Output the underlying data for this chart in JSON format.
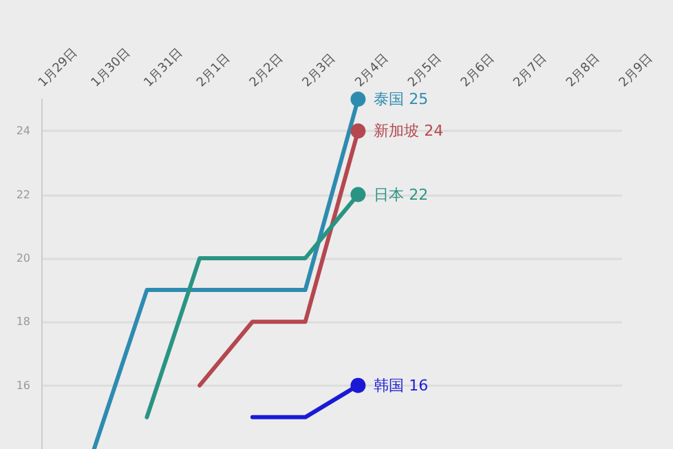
{
  "chart_data": {
    "type": "line",
    "categories": [
      "1月29日",
      "1月30日",
      "1月31日",
      "2月1日",
      "2月2日",
      "2月3日",
      "2月4日",
      "2月5日",
      "2月6日",
      "2月7日",
      "2月8日",
      "2月9日"
    ],
    "series": [
      {
        "name": "泰国",
        "color": "#2e8bb0",
        "values": [
          null,
          14,
          19,
          19,
          19,
          19,
          25,
          null,
          null,
          null,
          null,
          null
        ],
        "value_labels": [
          null,
          null,
          null,
          null,
          null,
          null,
          "25",
          null,
          null,
          null,
          null,
          null
        ]
      },
      {
        "name": "新加坡",
        "color": "#b5474f",
        "values": [
          null,
          null,
          null,
          16,
          18,
          18,
          24,
          null,
          null,
          null,
          null,
          null
        ],
        "value_labels": [
          null,
          null,
          null,
          null,
          null,
          null,
          "24",
          null,
          null,
          null,
          null,
          null
        ]
      },
      {
        "name": "日本",
        "color": "#2a9483",
        "values": [
          null,
          null,
          15,
          20,
          20,
          20,
          22,
          null,
          null,
          null,
          null,
          null
        ],
        "value_labels": [
          null,
          null,
          null,
          null,
          null,
          null,
          "22",
          null,
          null,
          null,
          null,
          null
        ]
      },
      {
        "name": "韩国",
        "color": "#1a1ad6",
        "values": [
          null,
          null,
          null,
          null,
          15,
          15,
          16,
          null,
          null,
          null,
          null,
          null
        ],
        "value_labels": [
          null,
          null,
          null,
          null,
          null,
          null,
          "16",
          null,
          null,
          null,
          null,
          null
        ]
      }
    ],
    "ylim": [
      14,
      25
    ],
    "yticks": [
      16,
      18,
      20,
      22,
      24
    ],
    "grid": "y",
    "line_style": "solid"
  }
}
